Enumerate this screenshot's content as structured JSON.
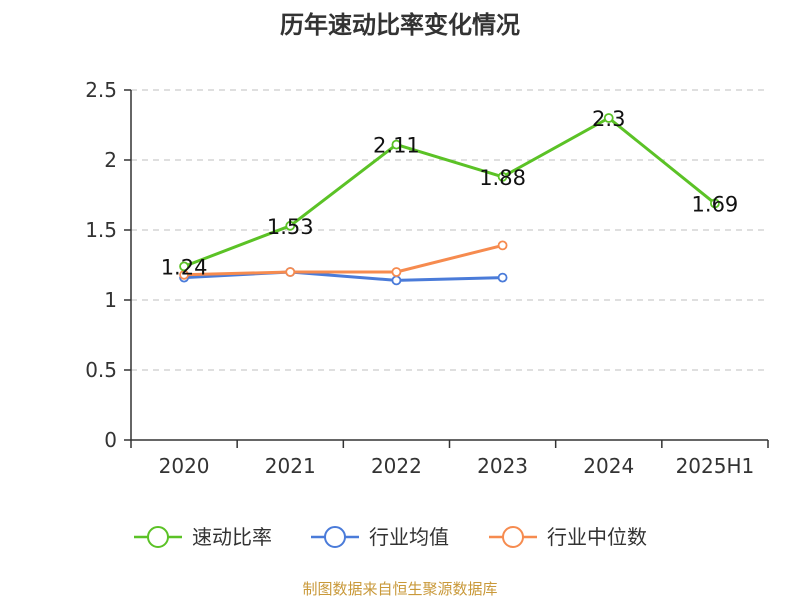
{
  "chart_data": {
    "type": "line",
    "title": "历年速动比率变化情况",
    "categories": [
      "2020",
      "2021",
      "2022",
      "2023",
      "2024",
      "2025H1"
    ],
    "ylim": [
      0,
      2.5
    ],
    "yticks": [
      "0",
      "0.5",
      "1",
      "1.5",
      "2",
      "2.5"
    ],
    "ytick_values": [
      0,
      0.5,
      1,
      1.5,
      2,
      2.5
    ],
    "grid": true,
    "legend_position": "bottom",
    "series": [
      {
        "name": "速动比率",
        "color": "#5bc226",
        "values": [
          1.24,
          1.53,
          2.11,
          1.88,
          2.3,
          1.69
        ],
        "labels": [
          "1.24",
          "1.53",
          "2.11",
          "1.88",
          "2.3",
          "1.69"
        ],
        "show_labels": true
      },
      {
        "name": "行业均值",
        "color": "#4a7bd9",
        "values": [
          1.16,
          1.2,
          1.14,
          1.16,
          null,
          null
        ],
        "show_labels": false
      },
      {
        "name": "行业中位数",
        "color": "#f68b4f",
        "values": [
          1.18,
          1.2,
          1.2,
          1.39,
          null,
          null
        ],
        "show_labels": false
      }
    ],
    "source": "制图数据来自恒生聚源数据库"
  }
}
